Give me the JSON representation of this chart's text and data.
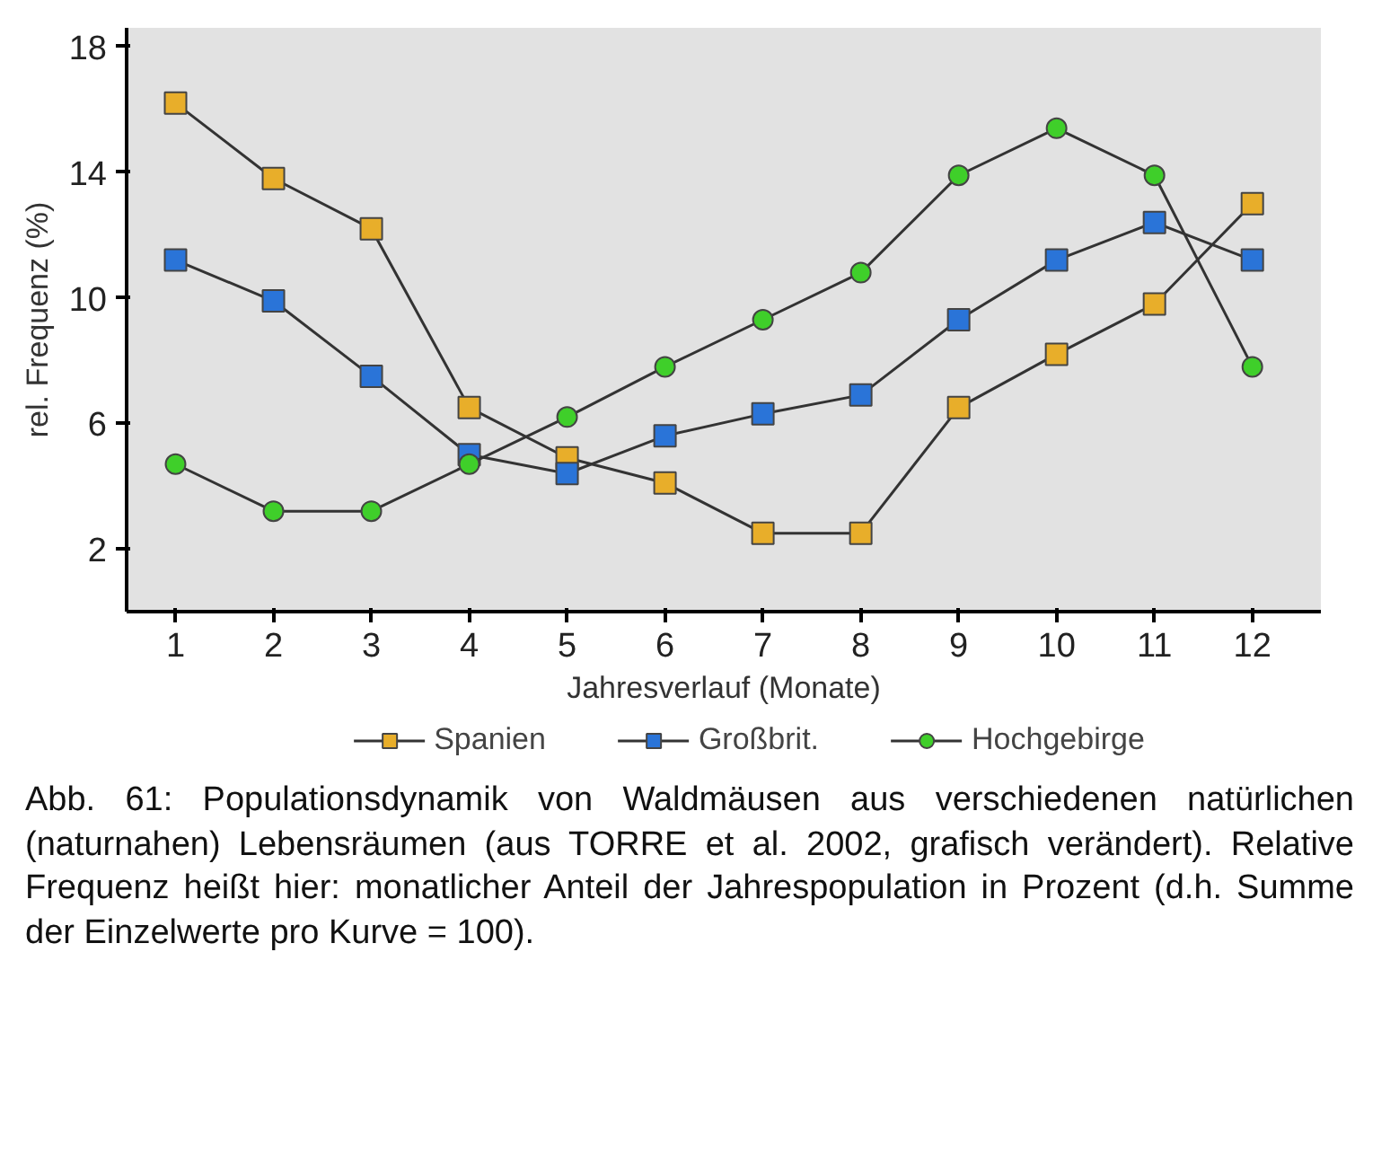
{
  "chart_data": {
    "type": "line",
    "xlabel": "Jahresverlauf (Monate)",
    "ylabel": "rel. Frequenz (%)",
    "x": [
      1,
      2,
      3,
      4,
      5,
      6,
      7,
      8,
      9,
      10,
      11,
      12
    ],
    "xlim": [
      0.5,
      12.7
    ],
    "xticks": [
      1,
      2,
      3,
      4,
      5,
      6,
      7,
      8,
      9,
      10,
      11,
      12
    ],
    "ylim": [
      0,
      18.6
    ],
    "yticks": [
      2,
      6,
      10,
      14,
      18
    ],
    "legend": "bottom",
    "series": [
      {
        "name": "Spanien",
        "color": "#e8ae2a",
        "marker": "square",
        "values": [
          16.2,
          13.8,
          12.2,
          6.5,
          4.9,
          4.1,
          2.5,
          2.5,
          6.5,
          8.2,
          9.8,
          13.0
        ]
      },
      {
        "name": "Großbrit.",
        "color": "#2a74d8",
        "marker": "square",
        "values": [
          11.2,
          9.9,
          7.5,
          5.0,
          4.4,
          5.6,
          6.3,
          6.9,
          9.3,
          11.2,
          12.4,
          11.2
        ]
      },
      {
        "name": "Hochgebirge",
        "color": "#3fcf2a",
        "marker": "circle",
        "values": [
          4.7,
          3.2,
          3.2,
          4.7,
          6.2,
          7.8,
          9.3,
          10.8,
          13.9,
          15.4,
          13.9,
          7.8
        ]
      }
    ],
    "annotations": [
      "Abb. 61: Populationsdynamik von Waldmäusen aus verschiedenen natürlichen (naturnahen) Lebensräumen (aus TORRE et al. 2002, grafisch verändert). Relative Frequenz heißt hier: monatlicher Anteil der Jahrespopulation in Prozent (d.h. Summe der Einzelwerte pro Kurve = 100)."
    ]
  }
}
